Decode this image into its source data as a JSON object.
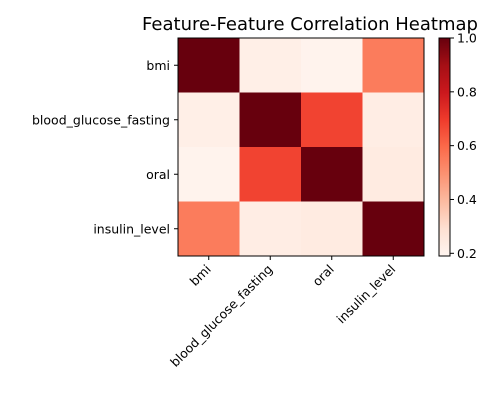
{
  "chart_data": {
    "type": "heatmap",
    "title": "Feature-Feature Correlation Heatmap",
    "x_categories": [
      "bmi",
      "blood_glucose_fasting",
      "oral",
      "insulin_level"
    ],
    "y_categories": [
      "bmi",
      "blood_glucose_fasting",
      "oral",
      "insulin_level"
    ],
    "matrix": [
      [
        1.0,
        0.22,
        0.2,
        0.55
      ],
      [
        0.22,
        1.0,
        0.68,
        0.23
      ],
      [
        0.2,
        0.68,
        1.0,
        0.24
      ],
      [
        0.55,
        0.23,
        0.24,
        1.0
      ]
    ],
    "colormap": "Reds",
    "colorbar": {
      "vmin": 0.19,
      "vmax": 1.0,
      "ticks": [
        0.2,
        0.4,
        0.6,
        0.8,
        1.0
      ],
      "tick_labels": [
        "0.2",
        "0.4",
        "0.6",
        "0.8",
        "1.0"
      ]
    }
  }
}
